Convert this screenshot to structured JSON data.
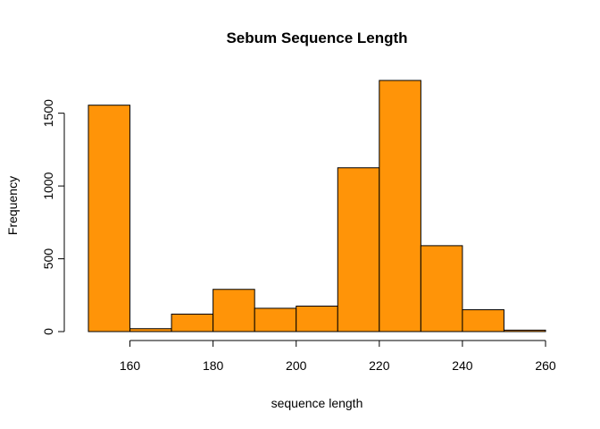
{
  "chart_data": {
    "type": "bar",
    "title": "Sebum Sequence Length",
    "xlabel": "sequence length",
    "ylabel": "Frequency",
    "bin_edges": [
      150,
      160,
      170,
      180,
      190,
      200,
      210,
      220,
      230,
      240,
      250,
      260
    ],
    "values": [
      1555,
      20,
      120,
      290,
      160,
      175,
      1125,
      1725,
      590,
      150,
      10
    ],
    "xlim": [
      150,
      260
    ],
    "ylim": [
      0,
      1725
    ],
    "x_ticks": [
      160,
      180,
      200,
      220,
      240,
      260
    ],
    "y_ticks": [
      0,
      500,
      1000,
      1500
    ],
    "bar_color": "#FF9408",
    "grid": false,
    "legend": "none"
  }
}
